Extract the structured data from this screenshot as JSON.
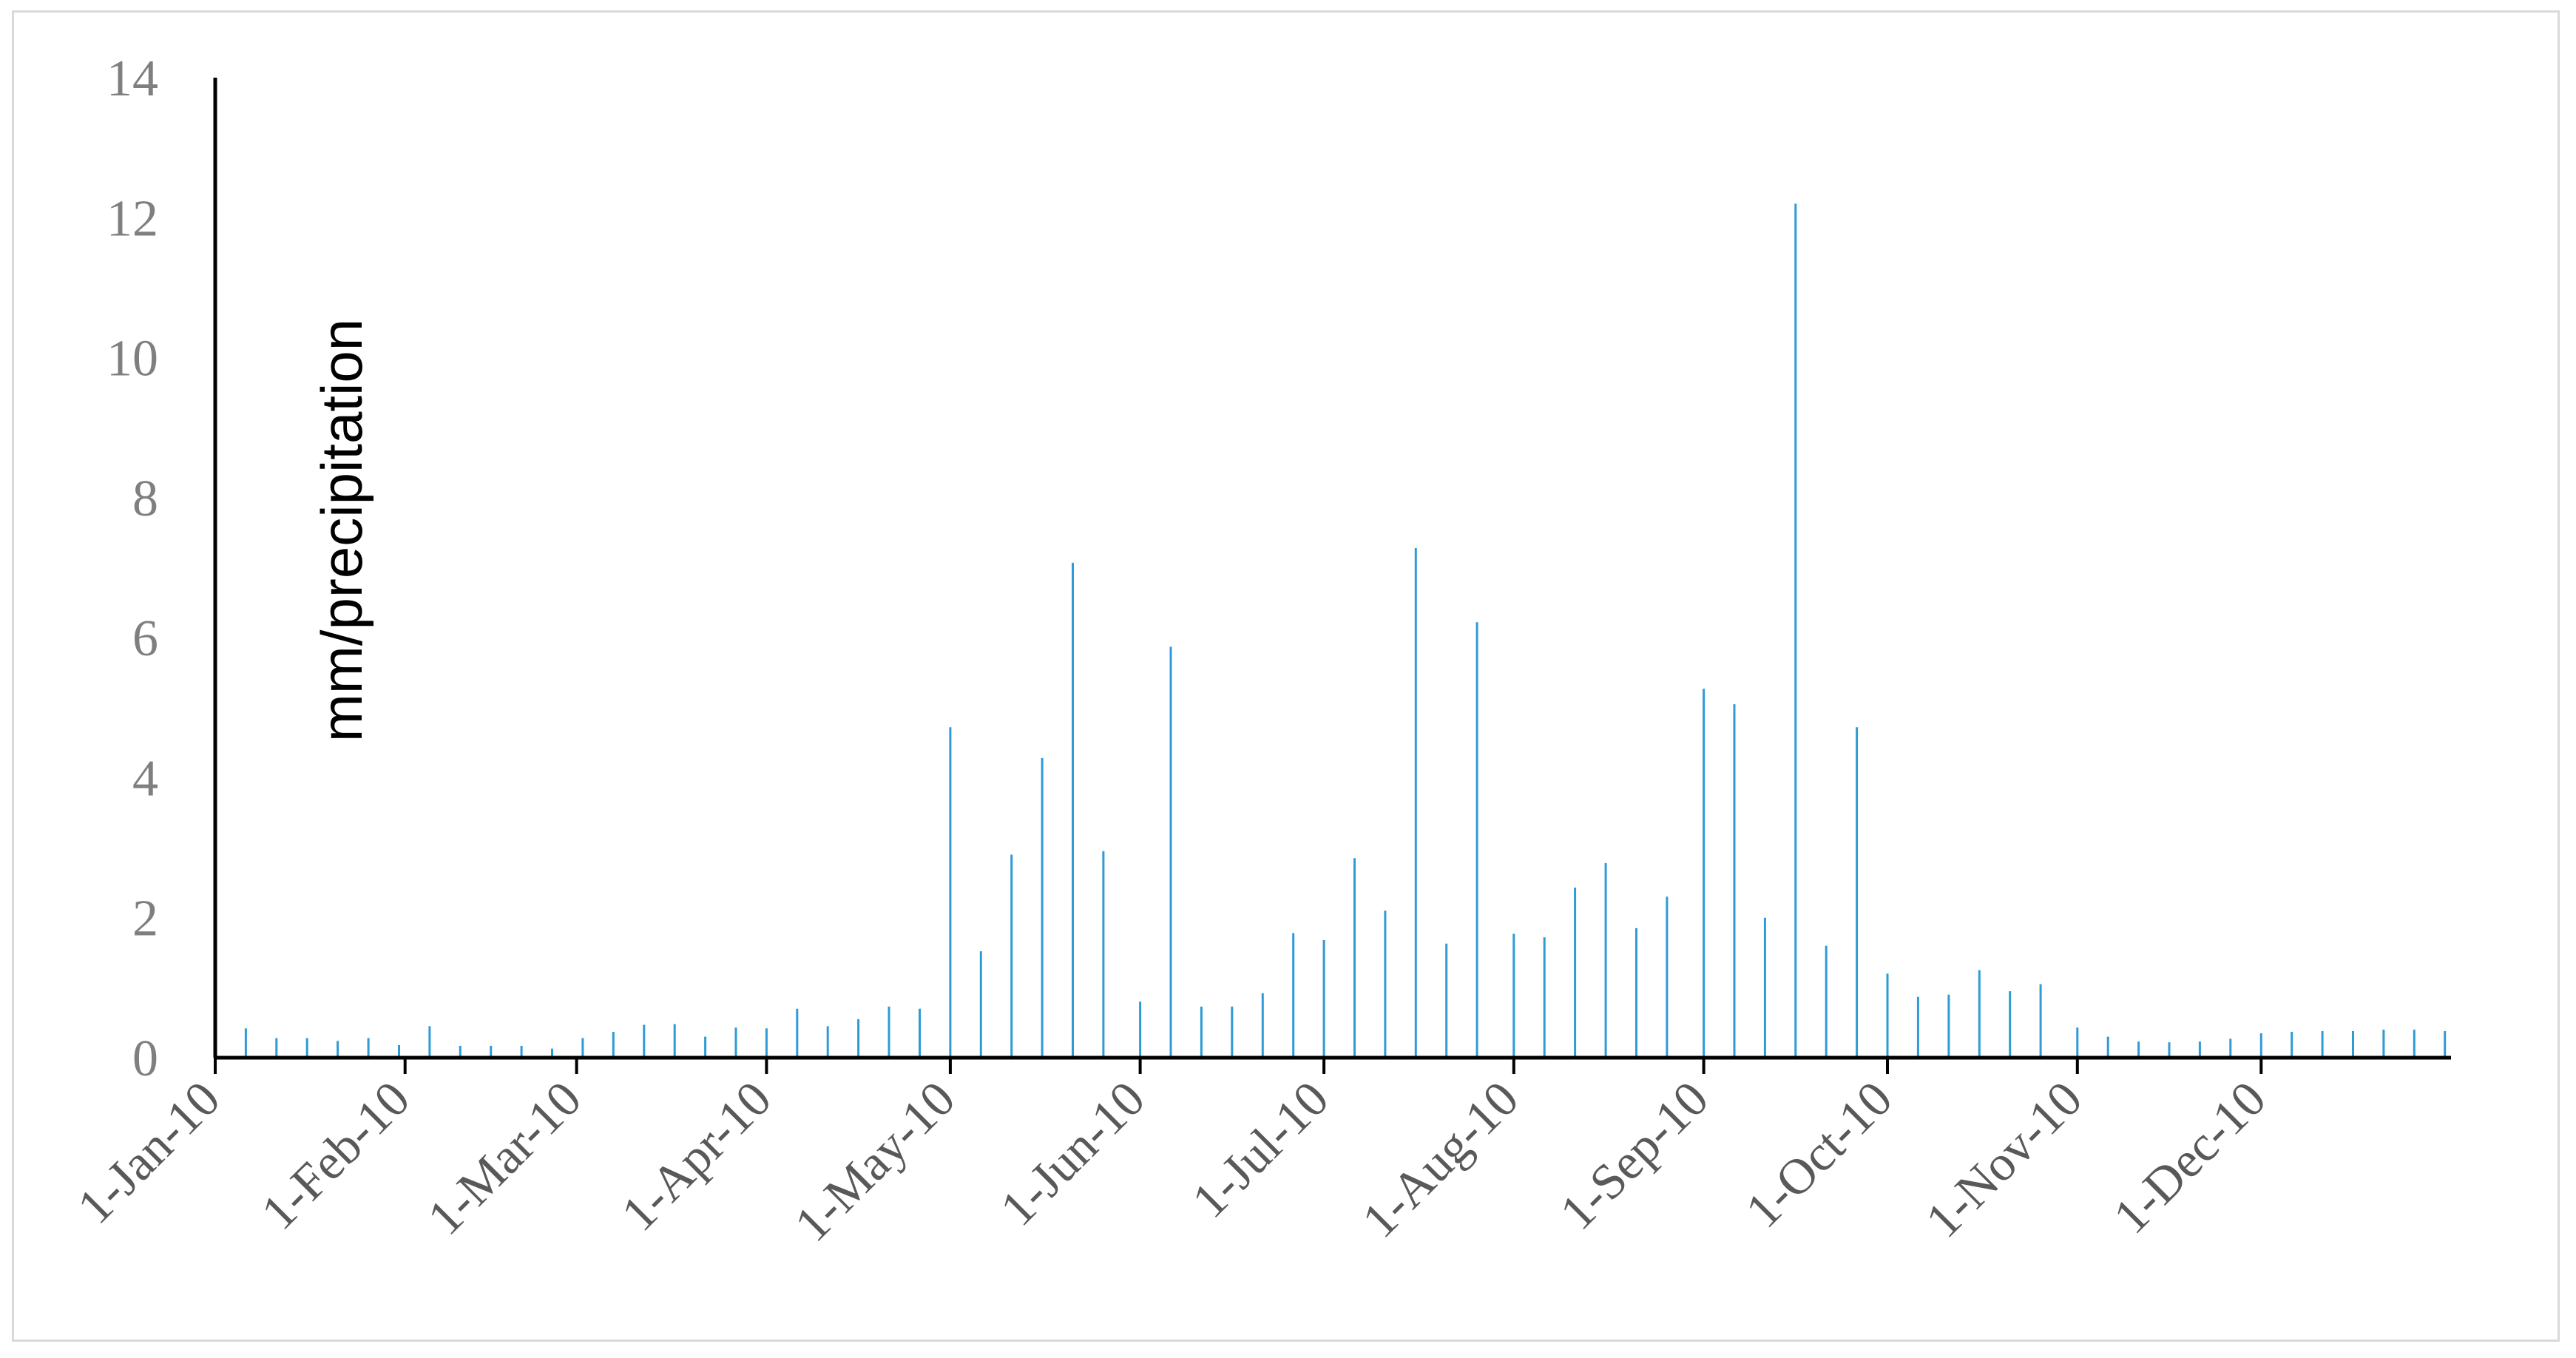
{
  "chart_data": {
    "type": "bar",
    "title": "",
    "xlabel": "",
    "ylabel": "mm/precipitation",
    "ylim": [
      0,
      14
    ],
    "xlim": [
      "2010-01-01",
      "2010-12-31"
    ],
    "y_ticks": [
      "0",
      "2",
      "4",
      "6",
      "8",
      "10",
      "12",
      "14"
    ],
    "x_ticks": [
      {
        "date": "2010-01-01",
        "label": "1-Jan-10"
      },
      {
        "date": "2010-02-01",
        "label": "1-Feb-10"
      },
      {
        "date": "2010-03-01",
        "label": "1-Mar-10"
      },
      {
        "date": "2010-04-01",
        "label": "1-Apr-10"
      },
      {
        "date": "2010-05-01",
        "label": "1-May-10"
      },
      {
        "date": "2010-06-01",
        "label": "1-Jun-10"
      },
      {
        "date": "2010-07-01",
        "label": "1-Jul-10"
      },
      {
        "date": "2010-08-01",
        "label": "1-Aug-10"
      },
      {
        "date": "2010-09-01",
        "label": "1-Sep-10"
      },
      {
        "date": "2010-10-01",
        "label": "1-Oct-10"
      },
      {
        "date": "2010-11-01",
        "label": "1-Nov-10"
      },
      {
        "date": "2010-12-01",
        "label": "1-Dec-10"
      }
    ],
    "grid": false,
    "legend": "none",
    "bar_color": "#2e9bd6",
    "axis_color": "#000000",
    "series": [
      {
        "x": [
          "2010-01-01",
          "2010-01-06",
          "2010-01-11",
          "2010-01-16",
          "2010-01-21",
          "2010-01-26",
          "2010-01-31",
          "2010-02-05",
          "2010-02-10",
          "2010-02-15",
          "2010-02-20",
          "2010-02-25",
          "2010-03-02",
          "2010-03-07",
          "2010-03-12",
          "2010-03-17",
          "2010-03-22",
          "2010-03-27",
          "2010-04-01",
          "2010-04-06",
          "2010-04-11",
          "2010-04-16",
          "2010-04-21",
          "2010-04-26",
          "2010-05-01",
          "2010-05-06",
          "2010-05-11",
          "2010-05-16",
          "2010-05-21",
          "2010-05-26",
          "2010-06-01",
          "2010-06-06",
          "2010-06-11",
          "2010-06-16",
          "2010-06-21",
          "2010-06-26",
          "2010-07-01",
          "2010-07-06",
          "2010-07-11",
          "2010-07-16",
          "2010-07-21",
          "2010-07-26",
          "2010-08-01",
          "2010-08-06",
          "2010-08-11",
          "2010-08-16",
          "2010-08-21",
          "2010-08-26",
          "2010-09-01",
          "2010-09-06",
          "2010-09-11",
          "2010-09-16",
          "2010-09-21",
          "2010-09-26",
          "2010-10-01",
          "2010-10-06",
          "2010-10-11",
          "2010-10-16",
          "2010-10-21",
          "2010-10-26",
          "2010-11-01",
          "2010-11-06",
          "2010-11-11",
          "2010-11-16",
          "2010-11-21",
          "2010-11-26",
          "2010-12-01",
          "2010-12-06",
          "2010-12-11",
          "2010-12-16",
          "2010-12-21",
          "2010-12-26",
          "2010-12-31"
        ],
        "values": [
          0.33,
          0.42,
          0.28,
          0.28,
          0.24,
          0.28,
          0.18,
          0.45,
          0.17,
          0.17,
          0.17,
          0.13,
          0.28,
          0.37,
          0.47,
          0.48,
          0.3,
          0.43,
          0.42,
          0.7,
          0.45,
          0.55,
          0.73,
          0.7,
          4.72,
          1.52,
          2.9,
          4.28,
          7.07,
          2.95,
          0.8,
          5.87,
          0.73,
          0.73,
          0.92,
          1.78,
          1.68,
          2.85,
          2.1,
          7.28,
          1.63,
          6.22,
          1.77,
          1.72,
          2.43,
          2.78,
          1.85,
          2.3,
          5.27,
          5.05,
          2.0,
          12.2,
          1.6,
          4.72,
          1.2,
          0.87,
          0.9,
          1.25,
          0.95,
          1.05,
          0.43,
          0.3,
          0.23,
          0.22,
          0.23,
          0.27,
          0.35,
          0.37,
          0.38,
          0.38,
          0.4,
          0.4,
          0.38
        ]
      }
    ]
  }
}
